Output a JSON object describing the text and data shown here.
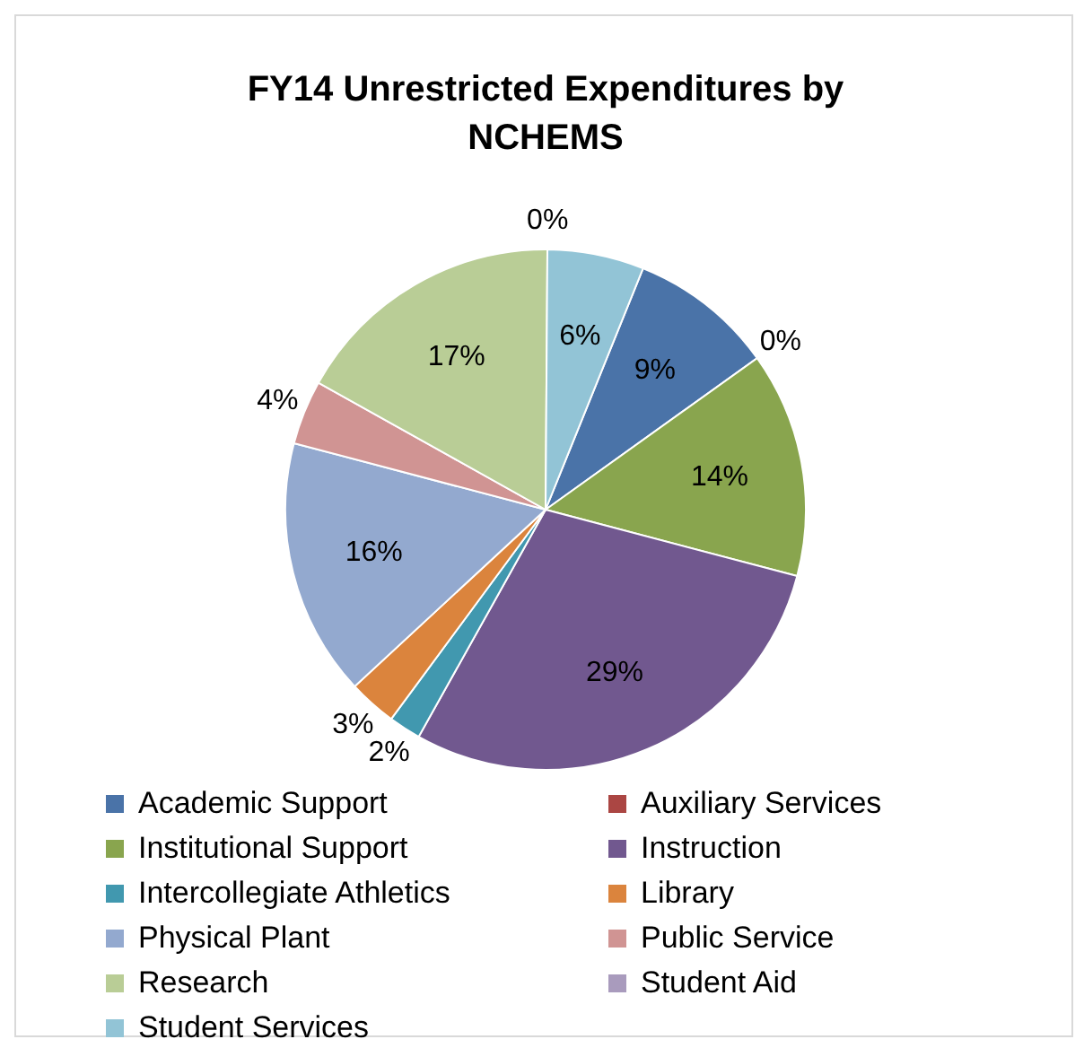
{
  "chart_data": {
    "type": "pie",
    "title": "FY14 Unrestricted Expenditures by NCHEMS",
    "categories": [
      "Academic Support",
      "Auxiliary Services",
      "Institutional Support",
      "Instruction",
      "Intercollegiate Athletics",
      "Library",
      "Physical Plant",
      "Public Service",
      "Research",
      "Student Aid",
      "Student Services"
    ],
    "values": [
      9,
      0,
      14,
      29,
      2,
      3,
      16,
      4,
      17,
      0,
      6
    ],
    "value_labels": [
      "9%",
      "0%",
      "14%",
      "29%",
      "2%",
      "3%",
      "16%",
      "4%",
      "17%",
      "0%",
      "6%"
    ],
    "colors": [
      "#4a73a8",
      "#ab4643",
      "#89a54e",
      "#71588f",
      "#4198af",
      "#db843d",
      "#93a9cf",
      "#d09493",
      "#b9cd96",
      "#a99bbd",
      "#92c4d6"
    ],
    "legend": "bottom"
  }
}
